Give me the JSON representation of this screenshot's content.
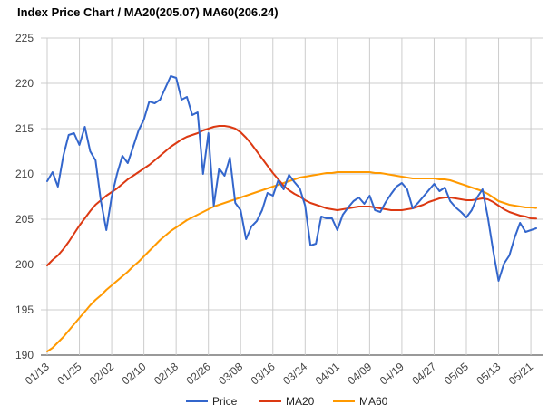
{
  "chart_data": {
    "type": "line",
    "title": "Index Price Chart / MA20(205.07) MA60(206.24)",
    "xlabel": "",
    "ylabel": "",
    "ylim": [
      190,
      225
    ],
    "y_ticks": [
      190,
      195,
      200,
      205,
      210,
      215,
      220,
      225
    ],
    "x_tick_labels": [
      "01/13",
      "01/25",
      "02/02",
      "02/10",
      "02/18",
      "02/26",
      "03/08",
      "03/16",
      "03/24",
      "04/01",
      "04/09",
      "04/19",
      "04/27",
      "05/05",
      "05/13",
      "05/21"
    ],
    "x_tick_index": [
      0,
      6,
      12,
      18,
      24,
      30,
      36,
      42,
      48,
      54,
      60,
      66,
      72,
      78,
      84,
      90
    ],
    "grid": true,
    "legend_position": "bottom-center",
    "series": [
      {
        "name": "Price",
        "color": "#3366cc",
        "values": [
          209.2,
          210.2,
          208.6,
          212.0,
          214.3,
          214.5,
          213.2,
          215.2,
          212.5,
          211.5,
          207.0,
          203.8,
          207.5,
          210.0,
          212.0,
          211.2,
          213.0,
          214.8,
          216.0,
          218.0,
          217.8,
          218.2,
          219.5,
          220.8,
          220.6,
          218.2,
          218.5,
          216.5,
          216.8,
          210.0,
          214.5,
          206.5,
          210.6,
          209.8,
          211.8,
          206.8,
          206.0,
          202.8,
          204.2,
          204.8,
          206.0,
          207.9,
          207.6,
          209.3,
          208.3,
          209.9,
          209.1,
          208.4,
          206.5,
          202.1,
          202.3,
          205.3,
          205.1,
          205.1,
          203.8,
          205.5,
          206.3,
          207.0,
          207.4,
          206.7,
          207.6,
          206.0,
          205.8,
          206.9,
          207.8,
          208.6,
          209.0,
          208.3,
          206.2,
          206.8,
          207.5,
          208.2,
          208.9,
          208.1,
          208.5,
          207.0,
          206.3,
          205.8,
          205.2,
          206.0,
          207.4,
          208.3,
          205.2,
          201.5,
          198.2,
          200.1,
          201.0,
          203.0,
          204.6,
          203.6,
          203.8,
          204.0
        ]
      },
      {
        "name": "MA20",
        "color": "#dc3912",
        "values": [
          199.9,
          200.5,
          201.0,
          201.7,
          202.5,
          203.4,
          204.3,
          205.1,
          205.9,
          206.6,
          207.1,
          207.6,
          208.0,
          208.4,
          208.9,
          209.4,
          209.8,
          210.2,
          210.6,
          211.0,
          211.5,
          212.0,
          212.5,
          213.0,
          213.4,
          213.8,
          214.1,
          214.3,
          214.5,
          214.8,
          215.0,
          215.2,
          215.3,
          215.3,
          215.2,
          215.0,
          214.6,
          214.0,
          213.3,
          212.5,
          211.7,
          210.9,
          210.1,
          209.4,
          208.7,
          208.2,
          207.8,
          207.5,
          207.1,
          206.8,
          206.6,
          206.4,
          206.2,
          206.1,
          206.0,
          206.1,
          206.2,
          206.3,
          206.4,
          206.4,
          206.4,
          206.3,
          206.2,
          206.1,
          206.0,
          206.0,
          206.0,
          206.1,
          206.2,
          206.4,
          206.6,
          206.9,
          207.1,
          207.3,
          207.4,
          207.4,
          207.3,
          207.2,
          207.1,
          207.1,
          207.2,
          207.3,
          207.2,
          206.9,
          206.5,
          206.1,
          205.8,
          205.6,
          205.4,
          205.3,
          205.1,
          205.07
        ]
      },
      {
        "name": "MA60",
        "color": "#ff9900",
        "values": [
          190.4,
          190.8,
          191.4,
          192.0,
          192.7,
          193.4,
          194.1,
          194.8,
          195.5,
          196.1,
          196.6,
          197.2,
          197.7,
          198.2,
          198.7,
          199.2,
          199.8,
          200.3,
          200.9,
          201.5,
          202.1,
          202.7,
          203.2,
          203.7,
          204.1,
          204.5,
          204.9,
          205.2,
          205.5,
          205.8,
          206.1,
          206.4,
          206.6,
          206.8,
          207.0,
          207.2,
          207.4,
          207.6,
          207.8,
          208.0,
          208.2,
          208.4,
          208.6,
          208.8,
          209.0,
          209.2,
          209.4,
          209.6,
          209.7,
          209.8,
          209.9,
          210.0,
          210.1,
          210.1,
          210.2,
          210.2,
          210.2,
          210.2,
          210.2,
          210.2,
          210.2,
          210.1,
          210.1,
          210.0,
          209.9,
          209.8,
          209.7,
          209.6,
          209.5,
          209.5,
          209.5,
          209.5,
          209.5,
          209.4,
          209.4,
          209.3,
          209.1,
          208.9,
          208.7,
          208.5,
          208.3,
          208.1,
          207.8,
          207.4,
          207.0,
          206.8,
          206.6,
          206.5,
          206.4,
          206.3,
          206.3,
          206.24
        ]
      }
    ]
  }
}
